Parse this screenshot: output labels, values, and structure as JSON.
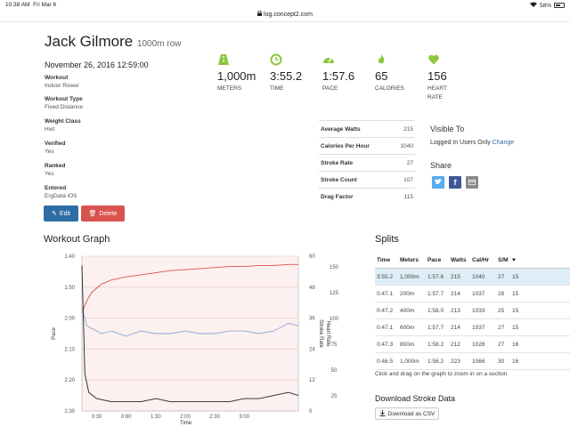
{
  "status": {
    "time": "10:38 AM",
    "date": "Fri Mar 6",
    "battery": "58%"
  },
  "url": "log.concept2.com",
  "athlete": {
    "name": "Jack Gilmore",
    "subtitle": "1000m row"
  },
  "workout_date": "November 26, 2016 12:59:00",
  "meta": [
    {
      "label": "Workout",
      "value": "Indoor Rower"
    },
    {
      "label": "Workout Type",
      "value": "Fixed Distance"
    },
    {
      "label": "Weight Class",
      "value": "Hwt"
    },
    {
      "label": "Verified",
      "value": "Yes"
    },
    {
      "label": "Ranked",
      "value": "Yes"
    },
    {
      "label": "Entered",
      "value": "ErgData iOS"
    }
  ],
  "buttons": {
    "edit": "Edit",
    "delete": "Delete"
  },
  "stats": [
    {
      "icon": "road-icon",
      "value": "1,000m",
      "label": "METERS"
    },
    {
      "icon": "clock-icon",
      "value": "3:55.2",
      "label": "TIME"
    },
    {
      "icon": "speedometer-icon",
      "value": "1:57.6",
      "label": "PACE"
    },
    {
      "icon": "flame-icon",
      "value": "65",
      "label": "CALORIES"
    },
    {
      "icon": "heart-icon",
      "value": "156",
      "label": "HEART RATE"
    }
  ],
  "summary": [
    {
      "k": "Average Watts",
      "v": "215"
    },
    {
      "k": "Calories Per Hour",
      "v": "1040"
    },
    {
      "k": "Stroke Rate",
      "v": "27"
    },
    {
      "k": "Stroke Count",
      "v": "107"
    },
    {
      "k": "Drag Factor",
      "v": "115"
    }
  ],
  "visibility": {
    "title": "Visible To",
    "value": "Logged In Users Only",
    "change": "Change"
  },
  "share": {
    "title": "Share"
  },
  "sections": {
    "graph": "Workout Graph",
    "splits": "Splits"
  },
  "splits": {
    "headers": [
      "Time",
      "Meters",
      "Pace",
      "Watts",
      "Cal/Hr",
      "S/M",
      "♥"
    ],
    "rows": [
      [
        "3:55.2",
        "1,000m",
        "1:57.6",
        "215",
        "1040",
        "27",
        "15"
      ],
      [
        "0:47.1",
        "200m",
        "1:57.7",
        "214",
        "1037",
        "28",
        "15"
      ],
      [
        "0:47.2",
        "400m",
        "1:58.0",
        "213",
        "1033",
        "25",
        "15"
      ],
      [
        "0:47.1",
        "600m",
        "1:57.7",
        "214",
        "1037",
        "27",
        "15"
      ],
      [
        "0:47.3",
        "800m",
        "1:58.2",
        "212",
        "1028",
        "27",
        "16"
      ],
      [
        "0:46.5",
        "1,000m",
        "1:56.2",
        "223",
        "1066",
        "30",
        "16"
      ]
    ]
  },
  "hint": "Click and drag on the graph to zoom in on a section",
  "download": {
    "title": "Download Stroke Data",
    "button": "Download as CSV"
  },
  "chart_data": {
    "type": "line",
    "xlabel": "Time",
    "ylabel": "Pace",
    "y2label": "Stroke Rate",
    "y3label": "Heart Rate",
    "x_ticks": [
      "0:30",
      "0:60",
      "1:30",
      "2:00",
      "2:30",
      "3:00"
    ],
    "pace_ticks": [
      "1:40",
      "1:50",
      "2:00",
      "2:10",
      "2:20",
      "2:30"
    ],
    "pace_range": [
      100,
      150
    ],
    "rate_ticks": [
      "60",
      "48",
      "36",
      "24",
      "12",
      "0"
    ],
    "rate_range": [
      0,
      60
    ],
    "hr_ticks": [
      "150",
      "125",
      "100",
      "75",
      "50",
      "25"
    ],
    "hr_range": [
      25,
      175
    ],
    "x_range": [
      15,
      235
    ],
    "series": [
      {
        "name": "Heart Rate",
        "color": "#d9534f",
        "x": [
          15,
          20,
          25,
          35,
          45,
          60,
          75,
          90,
          105,
          120,
          135,
          150,
          165,
          180,
          195,
          210,
          225,
          235
        ],
        "y": [
          120,
          132,
          140,
          148,
          152,
          155,
          157,
          159,
          161,
          162,
          163,
          164,
          165,
          165,
          166,
          166,
          167,
          167
        ]
      },
      {
        "name": "Stroke Rate",
        "color": "#8fa8d8",
        "x": [
          15,
          20,
          25,
          35,
          45,
          60,
          75,
          90,
          105,
          120,
          135,
          150,
          165,
          180,
          195,
          210,
          225,
          235
        ],
        "y": [
          40,
          33,
          32,
          30,
          31,
          29,
          31,
          30,
          30,
          31,
          30,
          30,
          31,
          31,
          30,
          31,
          34,
          33
        ]
      },
      {
        "name": "Pace",
        "color": "#222",
        "x": [
          15,
          18,
          22,
          30,
          45,
          60,
          75,
          90,
          105,
          120,
          135,
          150,
          165,
          180,
          195,
          210,
          225,
          235
        ],
        "y": [
          103,
          138,
          144,
          146,
          147,
          147,
          147,
          146,
          147,
          147,
          147,
          147,
          147,
          146,
          146,
          145,
          144,
          145
        ]
      }
    ]
  }
}
